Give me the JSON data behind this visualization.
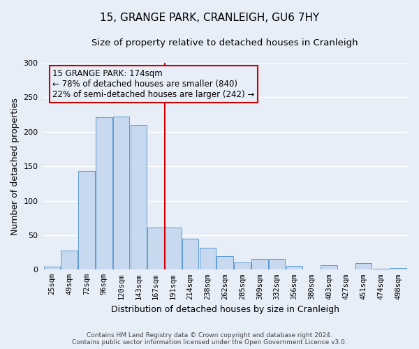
{
  "title": "15, GRANGE PARK, CRANLEIGH, GU6 7HY",
  "subtitle": "Size of property relative to detached houses in Cranleigh",
  "xlabel": "Distribution of detached houses by size in Cranleigh",
  "ylabel": "Number of detached properties",
  "bar_labels": [
    "25sqm",
    "49sqm",
    "72sqm",
    "96sqm",
    "120sqm",
    "143sqm",
    "167sqm",
    "191sqm",
    "214sqm",
    "238sqm",
    "262sqm",
    "285sqm",
    "309sqm",
    "332sqm",
    "356sqm",
    "380sqm",
    "403sqm",
    "427sqm",
    "451sqm",
    "474sqm",
    "498sqm"
  ],
  "bar_values": [
    4,
    28,
    143,
    221,
    222,
    210,
    61,
    61,
    45,
    32,
    20,
    10,
    16,
    16,
    5,
    0,
    6,
    0,
    9,
    1,
    2
  ],
  "bar_color": "#c8d9ef",
  "bar_edge_color": "#5b9bd5",
  "vline_color": "#cc0000",
  "annotation_title": "15 GRANGE PARK: 174sqm",
  "annotation_line1": "← 78% of detached houses are smaller (840)",
  "annotation_line2": "22% of semi-detached houses are larger (242) →",
  "annotation_box_color": "#cc0000",
  "ylim": [
    0,
    300
  ],
  "yticks": [
    0,
    50,
    100,
    150,
    200,
    250,
    300
  ],
  "footer_line1": "Contains HM Land Registry data © Crown copyright and database right 2024.",
  "footer_line2": "Contains public sector information licensed under the Open Government Licence v3.0.",
  "background_color": "#e8eef8",
  "grid_color": "#ffffff",
  "title_fontsize": 11,
  "subtitle_fontsize": 9.5,
  "axis_label_fontsize": 9,
  "tick_fontsize": 7.5,
  "footer_fontsize": 6.5,
  "annotation_fontsize": 8.5
}
